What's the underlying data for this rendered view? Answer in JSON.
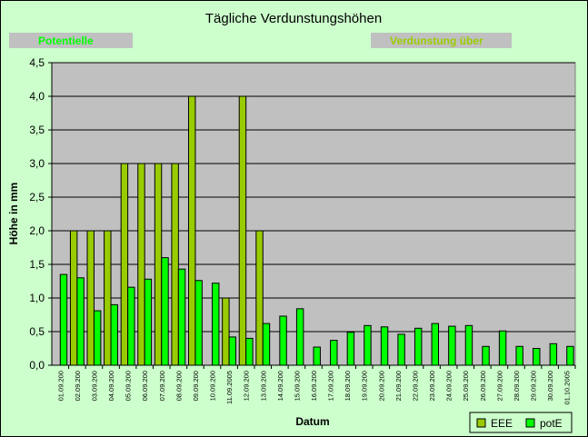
{
  "chart_data": {
    "type": "bar",
    "title": "Tägliche Verdunstungshöhen",
    "banner_left": "Potentielle",
    "banner_right": "Verdunstung über",
    "xlabel": "Datum",
    "ylabel": "Höhe in mm",
    "ylim": [
      0,
      4.5
    ],
    "yticks": [
      "0,0",
      "0,5",
      "1,0",
      "1,5",
      "2,0",
      "2,5",
      "3,0",
      "3,5",
      "4,0",
      "4,5"
    ],
    "grid": true,
    "legend_position": "bottom-right",
    "categories": [
      "01.09.200",
      "02.09.200",
      "03.09.200",
      "04.09.200",
      "05.09.200",
      "06.09.200",
      "07.09.200",
      "08.09.200",
      "09.09.200",
      "10.09.200",
      "11.09.2005",
      "12.09.200",
      "13.09.200",
      "14.09.200",
      "15.09.200",
      "16.09.200",
      "17.09.200",
      "18.09.200",
      "19.09.200",
      "20.09.200",
      "21.09.200",
      "22.09.200",
      "23.09.200",
      "24.09.200",
      "25.09.200",
      "26.09.200",
      "27.09.200",
      "28.09.200",
      "29.09.200",
      "30.09.200",
      "01.10.2005"
    ],
    "series": [
      {
        "name": "EEE",
        "color": "#99cc00",
        "values": [
          0,
          2.0,
          2.0,
          2.0,
          3.0,
          3.0,
          3.0,
          3.0,
          4.0,
          0,
          1.0,
          4.0,
          2.0,
          0,
          0,
          0,
          0,
          0,
          0,
          0,
          0,
          0,
          0,
          0,
          0,
          0,
          0,
          0,
          0,
          0,
          0
        ]
      },
      {
        "name": "potE",
        "color": "#00ff00",
        "values": [
          1.35,
          1.3,
          0.81,
          0.9,
          1.16,
          1.28,
          1.6,
          1.43,
          1.26,
          1.22,
          0.42,
          0.4,
          0.62,
          0.73,
          0.84,
          0.27,
          0.37,
          0.49,
          0.59,
          0.57,
          0.46,
          0.55,
          0.62,
          0.58,
          0.59,
          0.28,
          0.51,
          0.28,
          0.25,
          0.32,
          0.28
        ]
      }
    ]
  }
}
